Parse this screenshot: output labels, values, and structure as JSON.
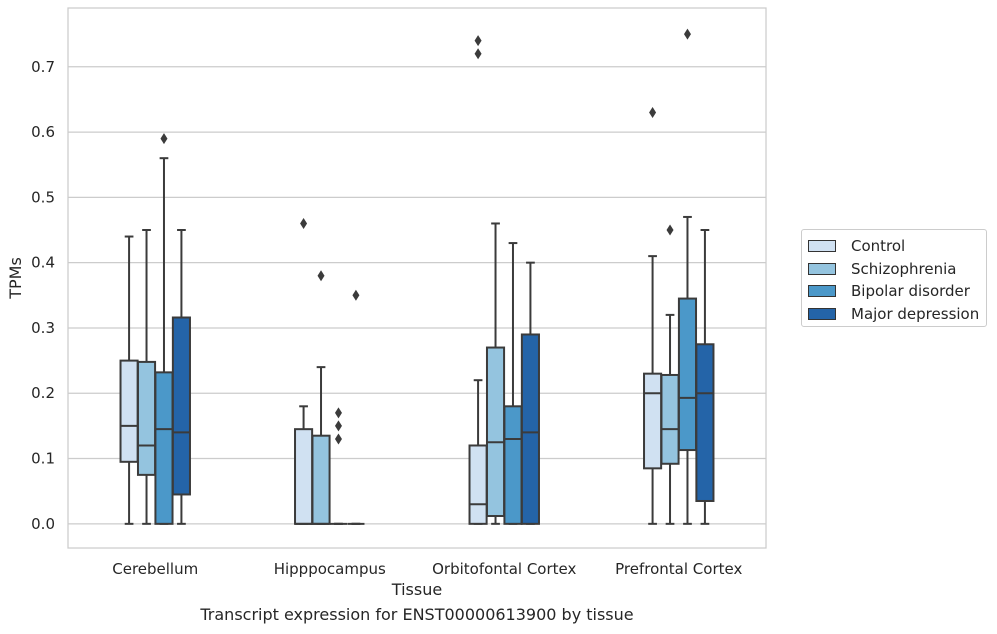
{
  "chart_data": {
    "type": "box",
    "xlabel": "Tissue",
    "ylabel": "TPMs",
    "caption": "Transcript expression for ENST00000613900 by tissue",
    "categories": [
      "Cerebellum",
      "Hipppocampus",
      "Orbitofontal Cortex",
      "Prefrontal Cortex"
    ],
    "ylim": [
      -0.037,
      0.79
    ],
    "yticks": [
      "0.0",
      "0.1",
      "0.2",
      "0.3",
      "0.4",
      "0.5",
      "0.6",
      "0.7"
    ],
    "grid": true,
    "legend_position": "right",
    "series": [
      {
        "name": "Control",
        "color": "#d0e1f2",
        "boxes": [
          {
            "min": 0.0,
            "q1": 0.095,
            "median": 0.15,
            "q3": 0.25,
            "max": 0.44,
            "outliers": []
          },
          {
            "min": 0.0,
            "q1": 0.0,
            "median": 0.0,
            "q3": 0.145,
            "max": 0.18,
            "outliers": [
              0.46
            ]
          },
          {
            "min": 0.0,
            "q1": 0.0,
            "median": 0.03,
            "q3": 0.12,
            "max": 0.22,
            "outliers": [
              0.72,
              0.74
            ]
          },
          {
            "min": 0.0,
            "q1": 0.085,
            "median": 0.2,
            "q3": 0.23,
            "max": 0.41,
            "outliers": [
              0.63
            ]
          }
        ]
      },
      {
        "name": "Schizophrenia",
        "color": "#94c4df",
        "boxes": [
          {
            "min": 0.0,
            "q1": 0.075,
            "median": 0.12,
            "q3": 0.248,
            "max": 0.45,
            "outliers": []
          },
          {
            "min": 0.0,
            "q1": 0.0,
            "median": 0.0,
            "q3": 0.135,
            "max": 0.24,
            "outliers": [
              0.38
            ]
          },
          {
            "min": 0.0,
            "q1": 0.012,
            "median": 0.125,
            "q3": 0.27,
            "max": 0.46,
            "outliers": []
          },
          {
            "min": 0.0,
            "q1": 0.092,
            "median": 0.145,
            "q3": 0.228,
            "max": 0.32,
            "outliers": [
              0.45
            ]
          }
        ]
      },
      {
        "name": "Bipolar disorder",
        "color": "#4b98c9",
        "boxes": [
          {
            "min": 0.0,
            "q1": 0.0,
            "median": 0.145,
            "q3": 0.232,
            "max": 0.56,
            "outliers": [
              0.59
            ]
          },
          {
            "min": 0.0,
            "q1": 0.0,
            "median": 0.0,
            "q3": 0.0,
            "max": 0.0,
            "outliers": [
              0.13,
              0.15,
              0.17
            ]
          },
          {
            "min": 0.0,
            "q1": 0.0,
            "median": 0.13,
            "q3": 0.18,
            "max": 0.43,
            "outliers": []
          },
          {
            "min": 0.0,
            "q1": 0.113,
            "median": 0.193,
            "q3": 0.345,
            "max": 0.47,
            "outliers": [
              0.75
            ]
          }
        ]
      },
      {
        "name": "Major depression",
        "color": "#2464a8",
        "boxes": [
          {
            "min": 0.0,
            "q1": 0.045,
            "median": 0.14,
            "q3": 0.316,
            "max": 0.45,
            "outliers": []
          },
          {
            "min": 0.0,
            "q1": 0.0,
            "median": 0.0,
            "q3": 0.0,
            "max": 0.0,
            "outliers": [
              0.35
            ]
          },
          {
            "min": 0.0,
            "q1": 0.0,
            "median": 0.14,
            "q3": 0.29,
            "max": 0.4,
            "outliers": []
          },
          {
            "min": 0.0,
            "q1": 0.035,
            "median": 0.2,
            "q3": 0.275,
            "max": 0.45,
            "outliers": []
          }
        ]
      }
    ]
  }
}
